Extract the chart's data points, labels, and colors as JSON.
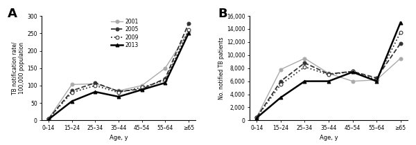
{
  "age_groups": [
    "0–14",
    "15–24",
    "25–34",
    "35–44",
    "45–54",
    "55–64",
    "≥65"
  ],
  "panel_A": {
    "2001": [
      5,
      103,
      105,
      85,
      100,
      150,
      255
    ],
    "2005": [
      5,
      85,
      108,
      83,
      90,
      120,
      278
    ],
    "2009": [
      5,
      80,
      100,
      80,
      95,
      115,
      260
    ],
    "2013": [
      3,
      55,
      82,
      68,
      88,
      108,
      250
    ]
  },
  "panel_B": {
    "2001": [
      500,
      7800,
      9500,
      7200,
      6000,
      6200,
      9500
    ],
    "2005": [
      500,
      6000,
      8800,
      7100,
      7500,
      6500,
      11800
    ],
    "2009": [
      500,
      5500,
      8200,
      7000,
      7500,
      6200,
      13500
    ],
    "2013": [
      400,
      3500,
      6000,
      6000,
      7400,
      6000,
      15000
    ]
  },
  "years": [
    "2001",
    "2005",
    "2009",
    "2013"
  ],
  "colors": {
    "2001": "#aaaaaa",
    "2005": "#333333",
    "2009": "#333333",
    "2013": "#000000"
  },
  "linestyles": {
    "2001": "-",
    "2005": "--",
    "2009": ":",
    "2013": "-"
  },
  "markers": {
    "2001": "o",
    "2005": "o",
    "2009": "o",
    "2013": "^"
  },
  "markerfacecolors": {
    "2001": "#aaaaaa",
    "2005": "#333333",
    "2009": "white",
    "2013": "#000000"
  },
  "markeredgecolors": {
    "2001": "#aaaaaa",
    "2005": "#333333",
    "2009": "#333333",
    "2013": "#000000"
  },
  "linewidths": {
    "2001": 1.0,
    "2005": 1.3,
    "2009": 1.3,
    "2013": 1.8
  },
  "panel_A_ylabel": "TB notification rate/\n100,000 population",
  "panel_B_ylabel": "No. notified TB patients",
  "xlabel": "Age, y",
  "panel_A_ylim": [
    0,
    300
  ],
  "panel_B_ylim": [
    0,
    16000
  ],
  "panel_A_yticks": [
    0,
    50,
    100,
    150,
    200,
    250,
    300
  ],
  "panel_B_yticks": [
    0,
    2000,
    4000,
    6000,
    8000,
    10000,
    12000,
    14000,
    16000
  ],
  "panel_A_label": "A",
  "panel_B_label": "B",
  "legend_labels": [
    "2001",
    "2005",
    "2009",
    "2013"
  ]
}
